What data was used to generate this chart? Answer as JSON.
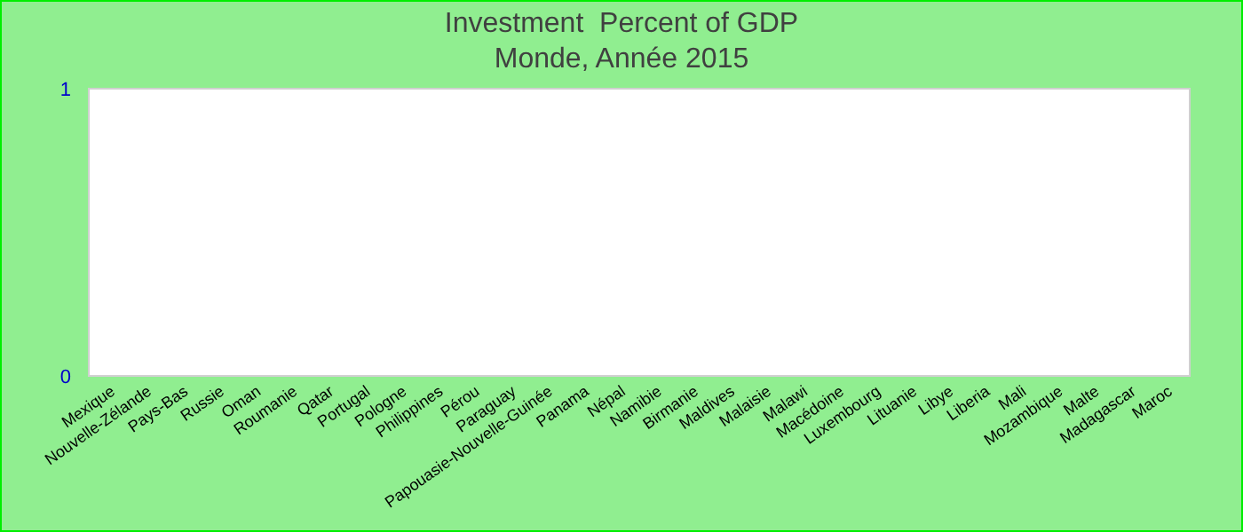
{
  "chart_data": {
    "type": "bar",
    "title": "Investment  Percent of GDP",
    "subtitle": "Monde, Année 2015",
    "categories": [
      "Mexique",
      "Nouvelle-Zélande",
      "Pays-Bas",
      "Russie",
      "Oman",
      "Roumanie",
      "Qatar",
      "Portugal",
      "Pologne",
      "Philippines",
      "Pérou",
      "Paraguay",
      "Papouasie-Nouvelle-Guinée",
      "Panama",
      "Népal",
      "Namibie",
      "Birmanie",
      "Maldives",
      "Malaisie",
      "Malawi",
      "Macédoine",
      "Luxembourg",
      "Lituanie",
      "Libye",
      "Liberia",
      "Mali",
      "Mozambique",
      "Malte",
      "Madagascar",
      "Maroc"
    ],
    "values": [
      null,
      null,
      null,
      null,
      null,
      null,
      null,
      null,
      null,
      null,
      null,
      null,
      null,
      null,
      null,
      null,
      null,
      null,
      null,
      null,
      null,
      null,
      null,
      null,
      null,
      null,
      null,
      null,
      null,
      null
    ],
    "ylim": [
      0,
      1
    ],
    "yticks": [
      0,
      1
    ]
  }
}
